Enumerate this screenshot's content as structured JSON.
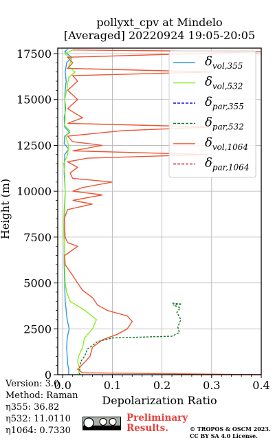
{
  "title": {
    "line1": "pollyxt_cpv at Mindelo",
    "line2": "[Averaged] 20220924 19:05-20:05"
  },
  "chart_data": {
    "type": "line",
    "xlabel": "Depolarization Ratio",
    "ylabel": "Height (m)",
    "xlim": [
      -0.01,
      0.4
    ],
    "ylim": [
      0,
      17800
    ],
    "x_ticks": [
      0.0,
      0.1,
      0.2,
      0.3,
      0.4
    ],
    "x_tick_labels": [
      "0.0",
      "0.1",
      "0.2",
      "0.3",
      "0.4"
    ],
    "y_ticks": [
      0,
      2500,
      5000,
      7500,
      10000,
      12500,
      15000,
      17500
    ],
    "y_tick_labels": [
      "0",
      "2500",
      "5000",
      "7500",
      "10000",
      "12500",
      "15000",
      "17500"
    ],
    "grid": true,
    "legend_position": "top-right",
    "series": [
      {
        "name": "δvol,355",
        "label_base": "δ",
        "label_sub": "vol,355",
        "color": "#3399dd",
        "dash": "solid",
        "points": [
          [
            0.012,
            0
          ],
          [
            0.012,
            300
          ],
          [
            0.01,
            600
          ],
          [
            0.009,
            1000
          ],
          [
            0.008,
            1500
          ],
          [
            0.009,
            2000
          ],
          [
            0.013,
            2500
          ],
          [
            0.009,
            3000
          ],
          [
            0.007,
            3500
          ],
          [
            0.005,
            4000
          ],
          [
            0.004,
            5000
          ],
          [
            0.003,
            6000
          ],
          [
            0.003,
            7500
          ],
          [
            0.004,
            9000
          ],
          [
            0.005,
            10000
          ],
          [
            0.003,
            11000
          ],
          [
            0.004,
            12000
          ],
          [
            0.012,
            12300
          ],
          [
            0.003,
            12600
          ],
          [
            0.004,
            13000
          ],
          [
            0.014,
            13200
          ],
          [
            0.004,
            13500
          ],
          [
            0.003,
            14000
          ],
          [
            0.006,
            14500
          ],
          [
            0.004,
            15000
          ],
          [
            0.005,
            15500
          ],
          [
            0.007,
            16000
          ],
          [
            0.005,
            16500
          ],
          [
            0.008,
            17000
          ],
          [
            0.018,
            17300
          ],
          [
            0.004,
            17600
          ],
          [
            0.01,
            17750
          ]
        ]
      },
      {
        "name": "δvol,532",
        "label_base": "δ",
        "label_sub": "vol,532",
        "color": "#88ee22",
        "dash": "solid",
        "points": [
          [
            0.03,
            0
          ],
          [
            0.035,
            300
          ],
          [
            0.03,
            700
          ],
          [
            0.032,
            1000
          ],
          [
            0.04,
            1500
          ],
          [
            0.044,
            2000
          ],
          [
            0.06,
            2500
          ],
          [
            0.068,
            3000
          ],
          [
            0.045,
            3500
          ],
          [
            0.015,
            4000
          ],
          [
            0.008,
            4500
          ],
          [
            0.005,
            5000
          ],
          [
            0.004,
            6000
          ],
          [
            0.003,
            7000
          ],
          [
            0.002,
            8000
          ],
          [
            0.003,
            9000
          ],
          [
            0.005,
            10000
          ],
          [
            0.004,
            11000
          ],
          [
            0.002,
            11500
          ],
          [
            0.01,
            12000
          ],
          [
            0.012,
            12500
          ],
          [
            0.006,
            13000
          ],
          [
            0.014,
            13300
          ],
          [
            0.004,
            13600
          ],
          [
            0.005,
            14000
          ],
          [
            0.004,
            15000
          ],
          [
            0.008,
            15500
          ],
          [
            0.012,
            16200
          ],
          [
            0.025,
            16500
          ],
          [
            0.012,
            16800
          ],
          [
            0.018,
            17200
          ],
          [
            0.004,
            17500
          ],
          [
            0.02,
            17700
          ]
        ]
      },
      {
        "name": "δpar,355",
        "label_base": "δ",
        "label_sub": "par,355",
        "color": "#1111cc",
        "dash": "dashed",
        "points": []
      },
      {
        "name": "δpar,532",
        "label_base": "δ",
        "label_sub": "par,532",
        "color": "#117722",
        "dash": "dashed",
        "points": [
          [
            0.034,
            0
          ],
          [
            0.034,
            300
          ],
          [
            0.036,
            700
          ],
          [
            0.044,
            1000
          ],
          [
            0.05,
            1400
          ],
          [
            0.07,
            1800
          ],
          [
            0.1,
            2000
          ],
          [
            0.22,
            2100
          ],
          [
            0.235,
            2300
          ],
          [
            0.232,
            2600
          ],
          [
            0.238,
            3000
          ],
          [
            0.23,
            3400
          ],
          [
            0.237,
            3650
          ],
          [
            0.222,
            3800
          ],
          [
            0.24,
            3850
          ],
          [
            0.22,
            3900
          ]
        ]
      },
      {
        "name": "δvol,1064",
        "label_base": "δ",
        "label_sub": "vol,1064",
        "color": "#ee5533",
        "dash": "solid",
        "points": [
          [
            0.4,
            0
          ],
          [
            0.04,
            100
          ],
          [
            0.03,
            300
          ],
          [
            0.045,
            700
          ],
          [
            0.055,
            1000
          ],
          [
            0.06,
            1500
          ],
          [
            0.08,
            1900
          ],
          [
            0.11,
            2200
          ],
          [
            0.13,
            2500
          ],
          [
            0.14,
            2900
          ],
          [
            0.13,
            3200
          ],
          [
            0.09,
            3500
          ],
          [
            0.07,
            3800
          ],
          [
            0.06,
            4200
          ],
          [
            0.04,
            4600
          ],
          [
            0.03,
            5000
          ],
          [
            0.02,
            5400
          ],
          [
            0.01,
            5800
          ],
          [
            0.005,
            6000
          ],
          [
            0.004,
            6500
          ],
          [
            0.02,
            6800
          ],
          [
            0.03,
            7000
          ],
          [
            0.01,
            7200
          ],
          [
            0.005,
            7500
          ],
          [
            0.003,
            8500
          ],
          [
            0.01,
            9000
          ],
          [
            0.06,
            9300
          ],
          [
            0.02,
            9500
          ],
          [
            0.08,
            9800
          ],
          [
            0.02,
            10000
          ],
          [
            0.04,
            10200
          ],
          [
            0.1,
            10500
          ],
          [
            0.02,
            10700
          ],
          [
            0.015,
            11000
          ],
          [
            0.03,
            11300
          ],
          [
            0.01,
            11600
          ],
          [
            0.05,
            11800
          ],
          [
            0.29,
            12000
          ],
          [
            0.02,
            12200
          ],
          [
            0.08,
            12500
          ],
          [
            0.02,
            12700
          ],
          [
            0.01,
            13000
          ],
          [
            0.12,
            13300
          ],
          [
            0.3,
            13500
          ],
          [
            0.01,
            13700
          ],
          [
            0.04,
            14000
          ],
          [
            0.01,
            14500
          ],
          [
            0.03,
            15000
          ],
          [
            0.01,
            15500
          ],
          [
            0.03,
            16000
          ],
          [
            0.02,
            16300
          ],
          [
            0.3,
            16500
          ],
          [
            0.01,
            16700
          ],
          [
            0.02,
            17000
          ],
          [
            0.01,
            17300
          ],
          [
            0.4,
            17600
          ],
          [
            0.02,
            17700
          ]
        ]
      },
      {
        "name": "δpar,1064",
        "label_base": "δ",
        "label_sub": "par,1064",
        "color": "#cc2222",
        "dash": "dashed",
        "points": []
      }
    ]
  },
  "footer": {
    "version": "Version: 3.0",
    "method": "Method: Raman",
    "eta355": "η355:  36.82",
    "eta532": "η532: 11.0110",
    "eta1064": "η1064: 0.7330"
  },
  "badge": {
    "preliminary_line1": "Preliminary",
    "preliminary_line2": "Results.",
    "credit_line1": "© TROPOS & OSCM 2023.",
    "credit_line2": "CC BY SA 4.0 License."
  }
}
